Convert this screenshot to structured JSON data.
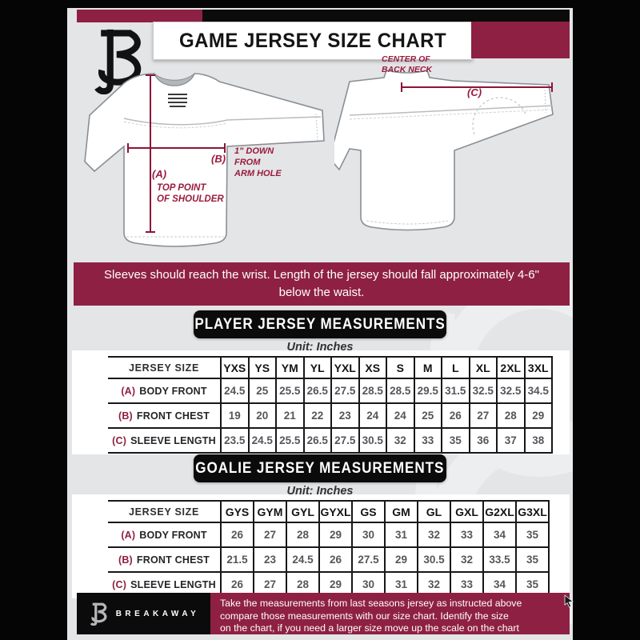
{
  "header": {
    "title": "GAME JERSEY SIZE CHART"
  },
  "diagram": {
    "front_view": {
      "a_key": "(A)",
      "a_note": "TOP POINT\nOF SHOULDER",
      "b_key": "(B)",
      "b_note": "1\" DOWN\nFROM\nARM HOLE"
    },
    "back_view": {
      "c_key": "(C)",
      "c_note": "CENTER OF\nBACK NECK"
    }
  },
  "notice": "Sleeves should reach the wrist. Length of the jersey should fall approximately 4-6\" below the waist.",
  "player": {
    "title": "PLAYER JERSEY MEASUREMENTS",
    "unit": "Unit: Inches",
    "size_header": "JERSEY SIZE",
    "sizes": [
      "YXS",
      "YS",
      "YM",
      "YL",
      "YXL",
      "XS",
      "S",
      "M",
      "L",
      "XL",
      "2XL",
      "3XL"
    ],
    "rows": [
      {
        "key": "(A)",
        "label": "BODY FRONT",
        "values": [
          "24.5",
          "25",
          "25.5",
          "26.5",
          "27.5",
          "28.5",
          "28.5",
          "29.5",
          "31.5",
          "32.5",
          "32.5",
          "34.5"
        ]
      },
      {
        "key": "(B)",
        "label": "FRONT CHEST",
        "values": [
          "19",
          "20",
          "21",
          "22",
          "23",
          "24",
          "24",
          "25",
          "26",
          "27",
          "28",
          "29"
        ]
      },
      {
        "key": "(C)",
        "label": "SLEEVE LENGTH",
        "values": [
          "23.5",
          "24.5",
          "25.5",
          "26.5",
          "27.5",
          "30.5",
          "32",
          "33",
          "35",
          "36",
          "37",
          "38"
        ]
      }
    ]
  },
  "goalie": {
    "title": "GOALIE JERSEY MEASUREMENTS",
    "unit": "Unit: Inches",
    "size_header": "JERSEY SIZE",
    "sizes": [
      "GYS",
      "GYM",
      "GYL",
      "GYXL",
      "GS",
      "GM",
      "GL",
      "GXL",
      "G2XL",
      "G3XL"
    ],
    "rows": [
      {
        "key": "(A)",
        "label": "BODY FRONT",
        "values": [
          "26",
          "27",
          "28",
          "29",
          "30",
          "31",
          "32",
          "33",
          "34",
          "35"
        ]
      },
      {
        "key": "(B)",
        "label": "FRONT CHEST",
        "values": [
          "21.5",
          "23",
          "24.5",
          "26",
          "27.5",
          "29",
          "30.5",
          "32",
          "33.5",
          "35"
        ]
      },
      {
        "key": "(C)",
        "label": "SLEEVE LENGTH",
        "values": [
          "26",
          "27",
          "28",
          "29",
          "30",
          "31",
          "32",
          "33",
          "34",
          "35"
        ]
      }
    ]
  },
  "footer": {
    "brand": "BREAKAWAY",
    "note_lines": [
      "Take the measurements from last seasons jersey as instructed above",
      "compare those measurements  with our size chart. Identify the size",
      "on the chart, if you need a larger size move up the scale on the chart"
    ]
  },
  "colors": {
    "maroon": "#8e2143",
    "black": "#0b0b0b",
    "background_gray": "#e4e5e7",
    "table_number_gray": "#54565a"
  }
}
